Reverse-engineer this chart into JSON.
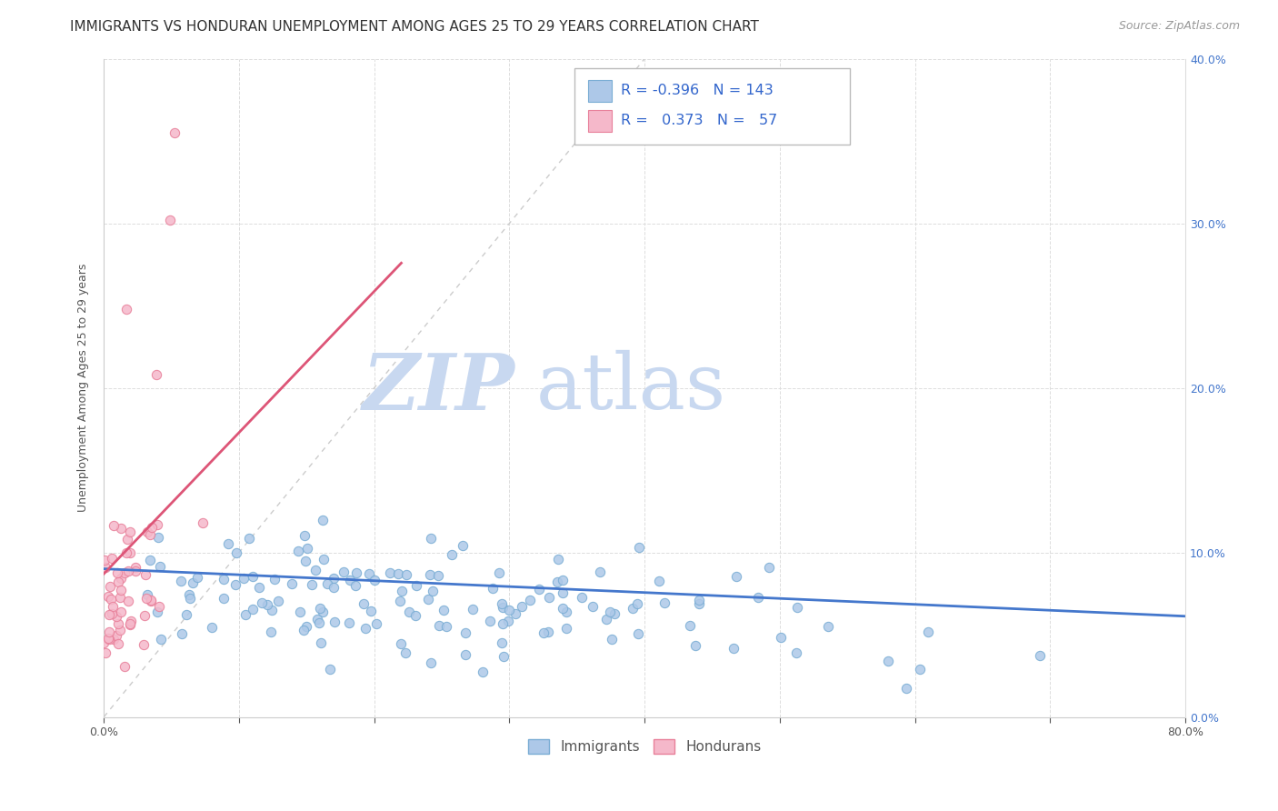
{
  "title": "IMMIGRANTS VS HONDURAN UNEMPLOYMENT AMONG AGES 25 TO 29 YEARS CORRELATION CHART",
  "source": "Source: ZipAtlas.com",
  "ylabel": "Unemployment Among Ages 25 to 29 years",
  "xlim": [
    0.0,
    0.8
  ],
  "ylim": [
    0.0,
    0.4
  ],
  "xlabel_ticks": [
    "0.0%",
    "",
    "",
    "",
    "",
    "",
    "",
    "",
    "80.0%"
  ],
  "xlabel_vals": [
    0.0,
    0.1,
    0.2,
    0.3,
    0.4,
    0.5,
    0.6,
    0.7,
    0.8
  ],
  "ylabel_right_ticks": [
    "0.0%",
    "10.0%",
    "20.0%",
    "30.0%",
    "40.0%"
  ],
  "ylabel_vals": [
    0.0,
    0.1,
    0.2,
    0.3,
    0.4
  ],
  "immigrants_color": "#adc8e8",
  "immigrants_edge_color": "#7aadd4",
  "hondurans_color": "#f5b8ca",
  "hondurans_edge_color": "#e8809a",
  "immigrants_line_color": "#4477cc",
  "hondurans_line_color": "#dd5577",
  "diagonal_color": "#cccccc",
  "watermark_zip_color": "#c8d8f0",
  "watermark_atlas_color": "#c8d8f0",
  "r_immigrants": -0.396,
  "n_immigrants": 143,
  "r_hondurans": 0.373,
  "n_hondurans": 57,
  "legend_immigrants": "Immigrants",
  "legend_hondurans": "Hondurans",
  "title_fontsize": 11,
  "source_fontsize": 9,
  "axis_label_fontsize": 9,
  "tick_fontsize": 9,
  "legend_fontsize": 11,
  "marker_size": 55,
  "seed": 42
}
